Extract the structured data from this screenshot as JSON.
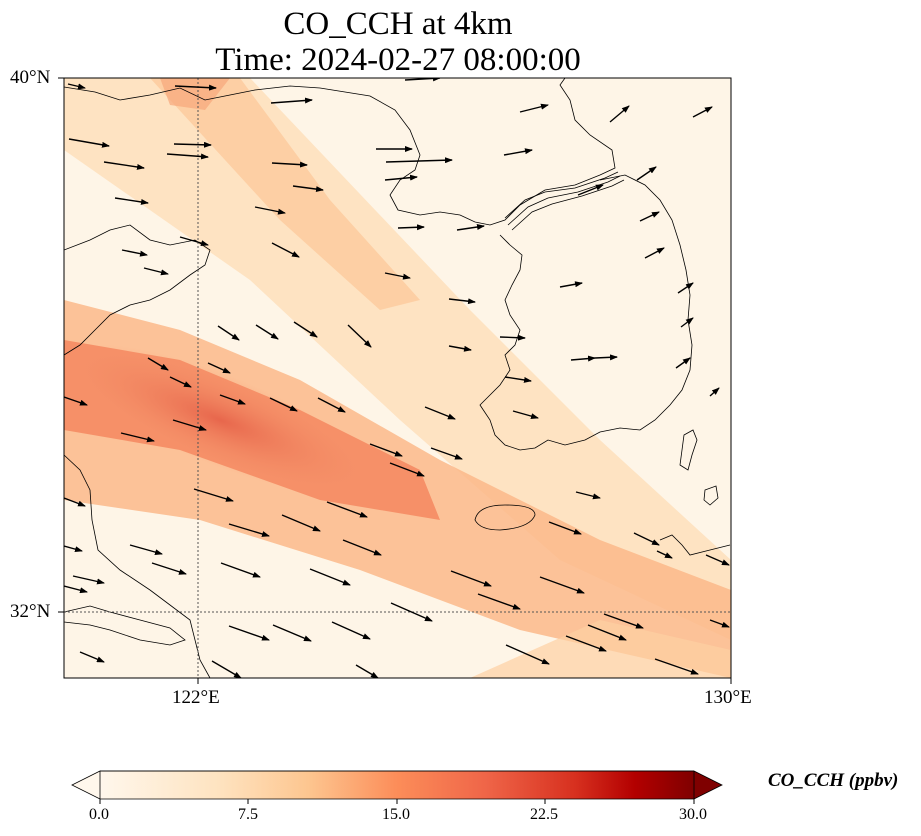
{
  "title": {
    "line1": "CO_CCH at 4km",
    "line2": "Time: 2024-02-27 08:00:00"
  },
  "map": {
    "lat_labels": [
      "40°N",
      "32°N"
    ],
    "lon_labels": [
      "122°E",
      "130°E"
    ],
    "extent": {
      "lon": [
        120,
        130
      ],
      "lat": [
        31,
        40
      ]
    },
    "gridlines": {
      "lon": [
        122
      ],
      "lat": [
        32
      ]
    }
  },
  "colorbar": {
    "label": "CO_CCH (ppbv)",
    "ticks": [
      "0.0",
      "7.5",
      "15.0",
      "22.5",
      "30.0"
    ],
    "range": [
      0,
      30
    ],
    "colormap": "OrRd",
    "extend": "both"
  },
  "colors": {
    "background_field": "#fef5e7",
    "plume_core": "#e8684f",
    "plume_mid": "#f79b6e",
    "plume_edge": "#fdd3a8",
    "coastline": "#000000",
    "wind_arrows": "#000000"
  }
}
